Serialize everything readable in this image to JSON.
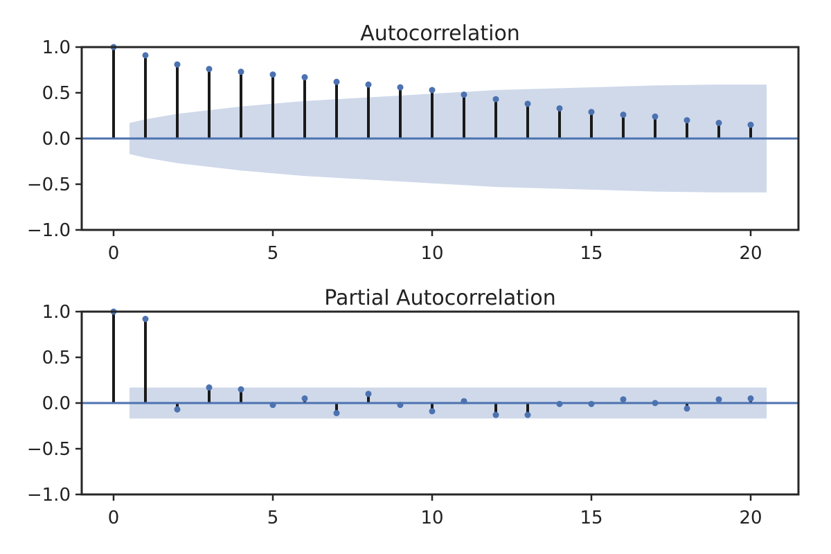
{
  "chart_data": [
    {
      "type": "stem",
      "title": "Autocorrelation",
      "xlabel": "",
      "ylabel": "",
      "xlim": [
        -1,
        21.5
      ],
      "ylim": [
        -1.0,
        1.0
      ],
      "xticks": [
        0,
        5,
        10,
        15,
        20
      ],
      "xtick_labels": [
        "0",
        "5",
        "10",
        "15",
        "20"
      ],
      "yticks": [
        1.0,
        0.5,
        0.0,
        -0.5,
        -1.0
      ],
      "ytick_labels": [
        "1.0",
        "0.5",
        "0.0",
        "−0.5",
        "−1.0"
      ],
      "lags": [
        0,
        1,
        2,
        3,
        4,
        5,
        6,
        7,
        8,
        9,
        10,
        11,
        12,
        13,
        14,
        15,
        16,
        17,
        18,
        19,
        20
      ],
      "values": [
        1.0,
        0.91,
        0.81,
        0.76,
        0.73,
        0.7,
        0.67,
        0.62,
        0.59,
        0.56,
        0.53,
        0.48,
        0.43,
        0.38,
        0.33,
        0.29,
        0.26,
        0.24,
        0.2,
        0.17,
        0.15
      ],
      "confidence_band": {
        "x_range": [
          0.5,
          20.5
        ],
        "lags": [
          0.5,
          1,
          2,
          3,
          4,
          5,
          6,
          7,
          8,
          9,
          10,
          11,
          12,
          13,
          14,
          15,
          16,
          17,
          18,
          19,
          20,
          20.5
        ],
        "upper": [
          0.17,
          0.21,
          0.27,
          0.31,
          0.35,
          0.38,
          0.41,
          0.43,
          0.45,
          0.47,
          0.49,
          0.51,
          0.53,
          0.54,
          0.55,
          0.56,
          0.57,
          0.58,
          0.585,
          0.59,
          0.59,
          0.59
        ]
      },
      "colors": {
        "stem": "#1a1a1a",
        "marker": "#4c72b0",
        "band": "#cfd9ea",
        "zero_line": "#4c72b0"
      }
    },
    {
      "type": "stem",
      "title": "Partial Autocorrelation",
      "xlabel": "",
      "ylabel": "",
      "xlim": [
        -1,
        21.5
      ],
      "ylim": [
        -1.0,
        1.0
      ],
      "xticks": [
        0,
        5,
        10,
        15,
        20
      ],
      "xtick_labels": [
        "0",
        "5",
        "10",
        "15",
        "20"
      ],
      "yticks": [
        1.0,
        0.5,
        0.0,
        -0.5,
        -1.0
      ],
      "ytick_labels": [
        "1.0",
        "0.5",
        "0.0",
        "−0.5",
        "−1.0"
      ],
      "lags": [
        0,
        1,
        2,
        3,
        4,
        5,
        6,
        7,
        8,
        9,
        10,
        11,
        12,
        13,
        14,
        15,
        16,
        17,
        18,
        19,
        20
      ],
      "values": [
        1.0,
        0.92,
        -0.07,
        0.17,
        0.15,
        -0.02,
        0.05,
        -0.11,
        0.1,
        -0.02,
        -0.09,
        0.02,
        -0.13,
        -0.13,
        -0.01,
        -0.01,
        0.04,
        0.0,
        -0.06,
        0.04,
        0.05
      ],
      "confidence_band": {
        "x_range": [
          0.5,
          20.5
        ],
        "lags": [
          0.5,
          20.5
        ],
        "upper": [
          0.17,
          0.17
        ]
      },
      "colors": {
        "stem": "#1a1a1a",
        "marker": "#4c72b0",
        "band": "#cfd9ea",
        "zero_line": "#4c72b0"
      }
    }
  ]
}
